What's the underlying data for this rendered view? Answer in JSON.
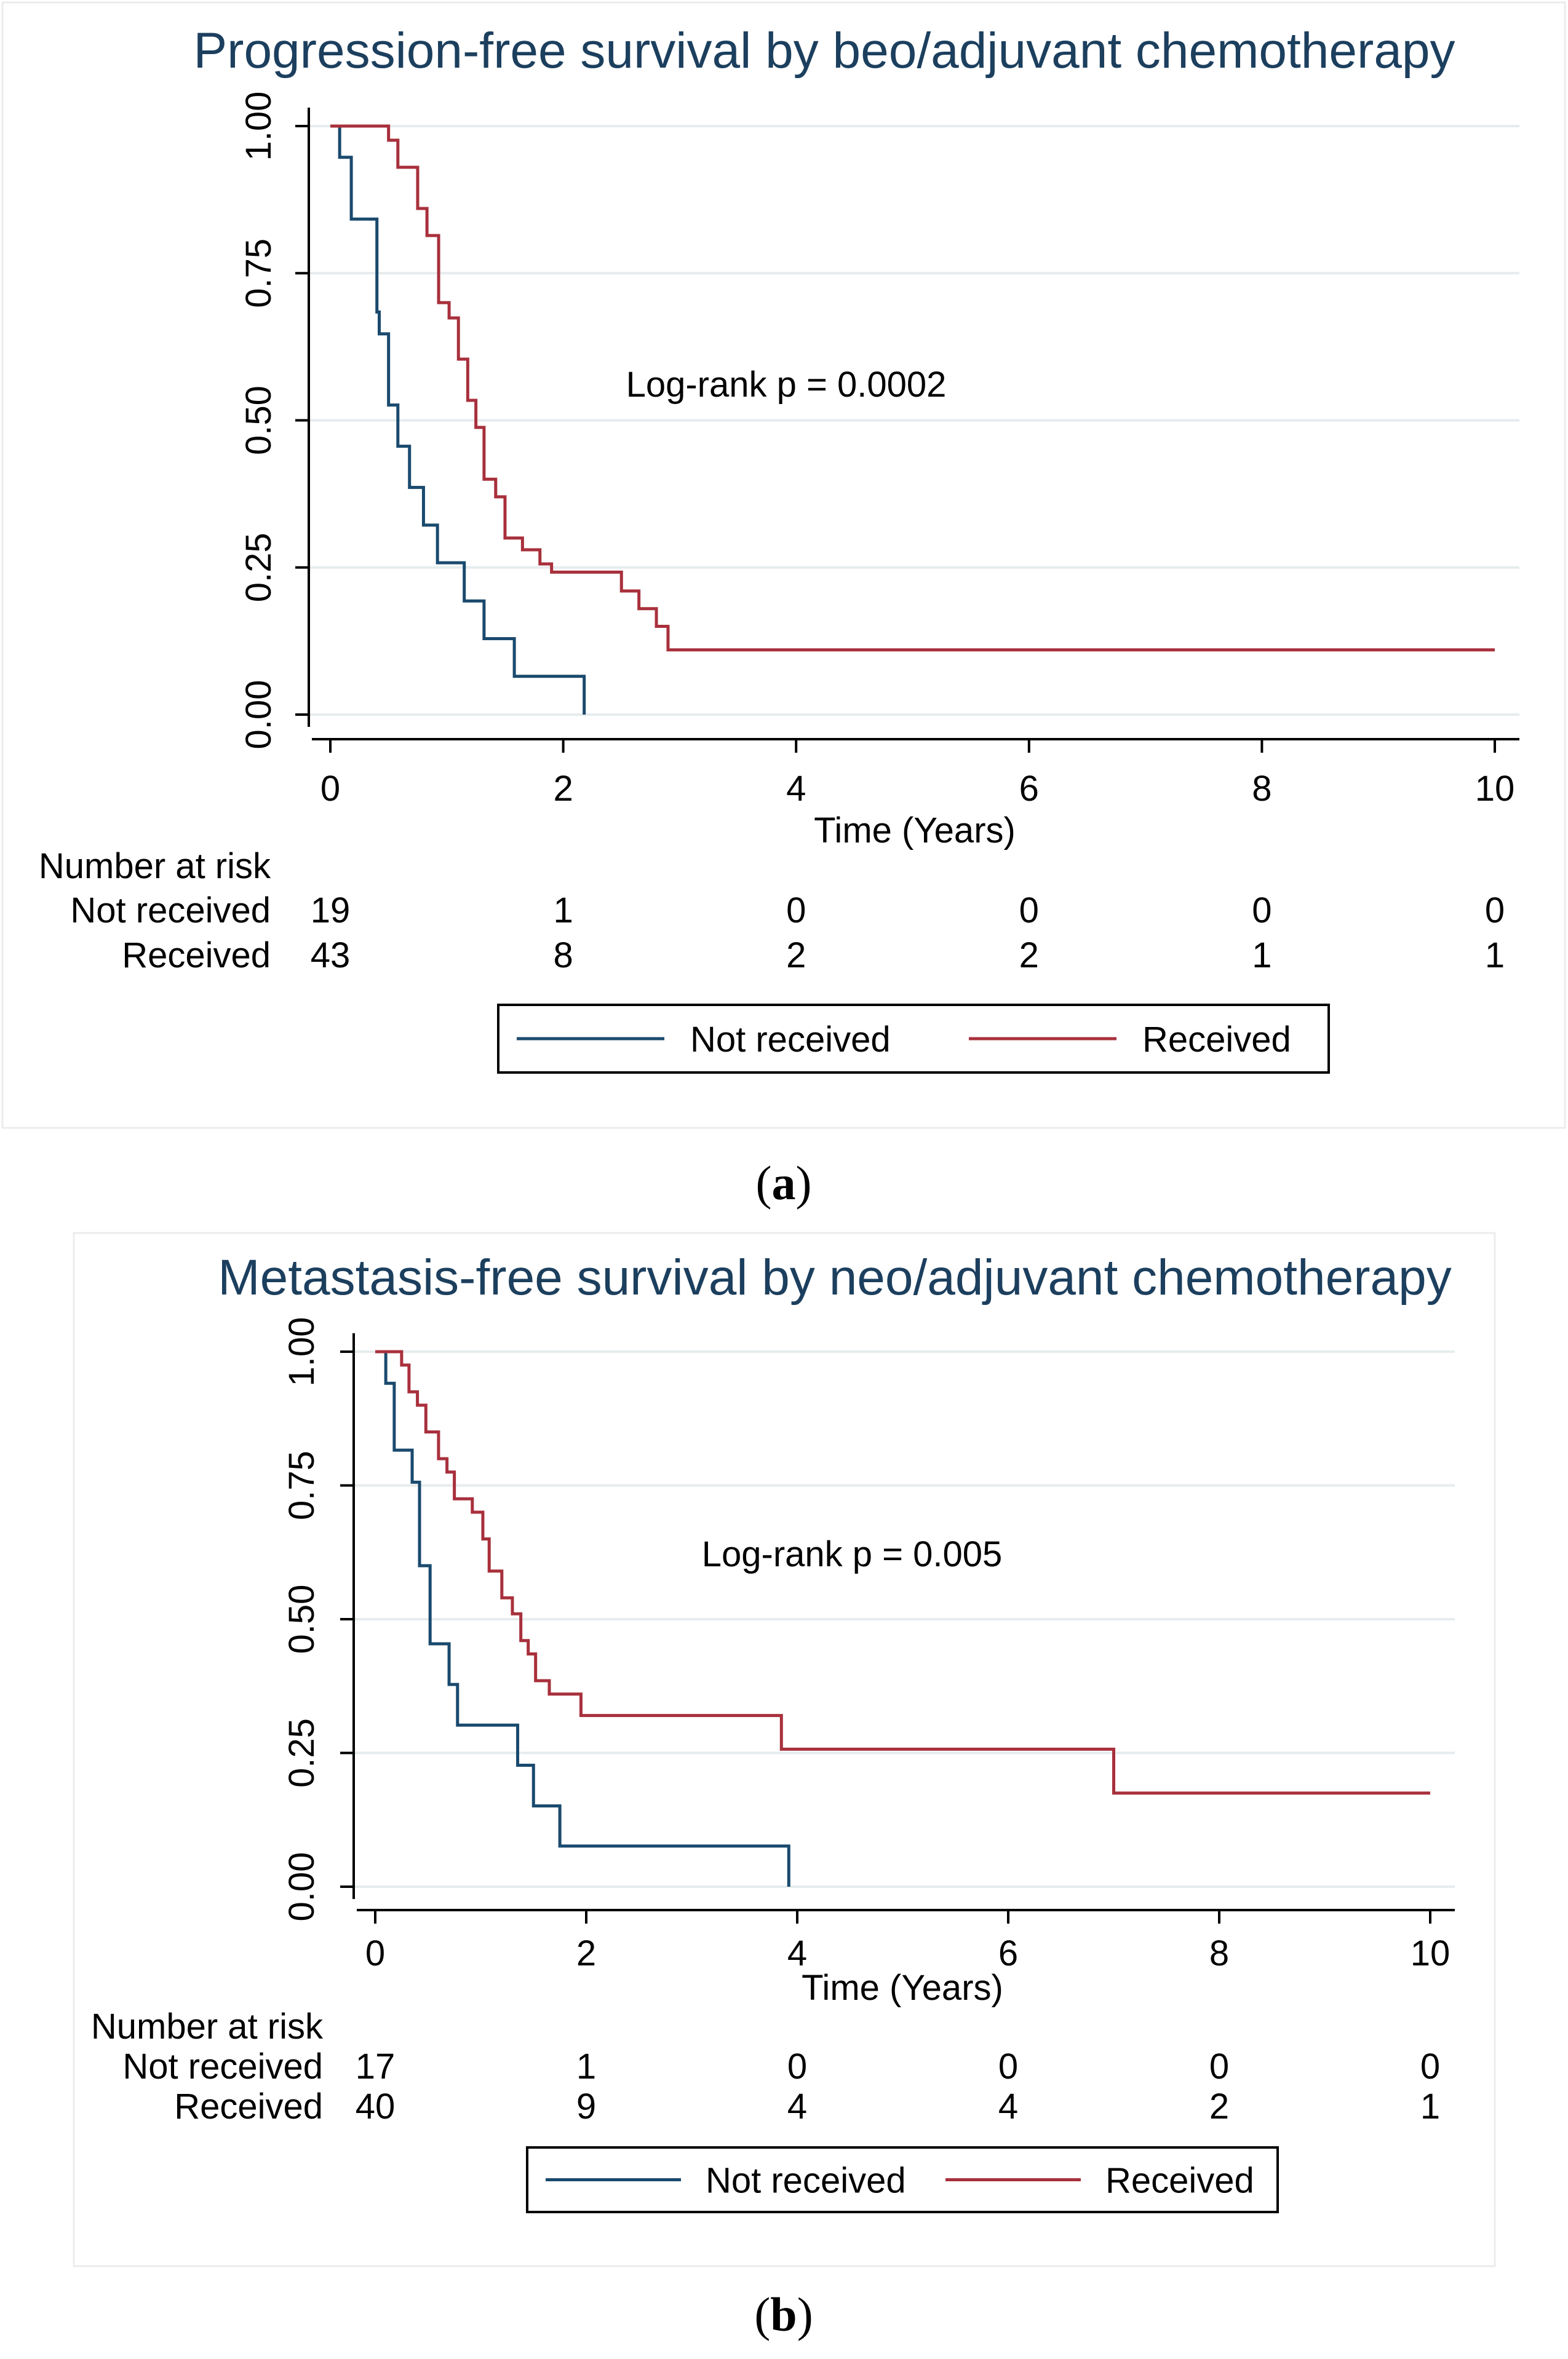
{
  "chart_data": [
    {
      "type": "line",
      "title": "Progression-free survival by beo/adjuvant chemotherapy",
      "xlabel": "Time (Years)",
      "ylabel": "",
      "xlim": [
        0,
        10
      ],
      "ylim": [
        0,
        1
      ],
      "xticks": [
        "0",
        "2",
        "4",
        "6",
        "8",
        "10"
      ],
      "yticks": [
        "0.00",
        "0.25",
        "0.50",
        "0.75",
        "1.00"
      ],
      "annotation": "Log-rank p = 0.0002",
      "caption_letter": "a",
      "series": [
        {
          "name": "Not received",
          "color": "#1a4a6e",
          "steps": [
            [
              0,
              1.0
            ],
            [
              0.08,
              0.947
            ],
            [
              0.18,
              0.842
            ],
            [
              0.4,
              0.684
            ],
            [
              0.42,
              0.647
            ],
            [
              0.5,
              0.526
            ],
            [
              0.58,
              0.456
            ],
            [
              0.68,
              0.386
            ],
            [
              0.8,
              0.322
            ],
            [
              0.92,
              0.258
            ],
            [
              1.15,
              0.193
            ],
            [
              1.32,
              0.129
            ],
            [
              1.58,
              0.065
            ],
            [
              2.18,
              0.0
            ]
          ],
          "end": 2.18
        },
        {
          "name": "Received",
          "color": "#a8303c",
          "steps": [
            [
              0,
              1.0
            ],
            [
              0.5,
              0.976
            ],
            [
              0.58,
              0.93
            ],
            [
              0.75,
              0.86
            ],
            [
              0.83,
              0.814
            ],
            [
              0.93,
              0.7
            ],
            [
              1.02,
              0.674
            ],
            [
              1.1,
              0.604
            ],
            [
              1.18,
              0.534
            ],
            [
              1.25,
              0.488
            ],
            [
              1.32,
              0.4
            ],
            [
              1.42,
              0.37
            ],
            [
              1.5,
              0.3
            ],
            [
              1.65,
              0.28
            ],
            [
              1.8,
              0.256
            ],
            [
              1.9,
              0.242
            ],
            [
              2.5,
              0.21
            ],
            [
              2.65,
              0.18
            ],
            [
              2.8,
              0.15
            ],
            [
              2.9,
              0.11
            ]
          ],
          "end": 10
        }
      ],
      "risk_table": {
        "header": "Number at risk",
        "times": [
          0,
          2,
          4,
          6,
          8,
          10
        ],
        "rows": [
          {
            "label": "Not received",
            "values": [
              "19",
              "1",
              "0",
              "0",
              "0",
              "0"
            ]
          },
          {
            "label": "Received",
            "values": [
              "43",
              "8",
              "2",
              "2",
              "1",
              "1"
            ]
          }
        ]
      },
      "legend": [
        "Not received",
        "Received"
      ]
    },
    {
      "type": "line",
      "title": "Metastasis-free survival by neo/adjuvant chemotherapy",
      "xlabel": "Time (Years)",
      "ylabel": "",
      "xlim": [
        0,
        10
      ],
      "ylim": [
        0,
        1
      ],
      "xticks": [
        "0",
        "2",
        "4",
        "6",
        "8",
        "10"
      ],
      "yticks": [
        "0.00",
        "0.25",
        "0.50",
        "0.75",
        "1.00"
      ],
      "annotation": "Log-rank p = 0.005",
      "caption_letter": "b",
      "series": [
        {
          "name": "Not received",
          "color": "#1a4a6e",
          "steps": [
            [
              0,
              1.0
            ],
            [
              0.1,
              0.941
            ],
            [
              0.18,
              0.816
            ],
            [
              0.35,
              0.756
            ],
            [
              0.42,
              0.6
            ],
            [
              0.52,
              0.454
            ],
            [
              0.7,
              0.378
            ],
            [
              0.78,
              0.302
            ],
            [
              1.35,
              0.227
            ],
            [
              1.5,
              0.151
            ],
            [
              1.75,
              0.076
            ],
            [
              3.92,
              0.0
            ]
          ],
          "end": 3.92
        },
        {
          "name": "Received",
          "color": "#a8303c",
          "steps": [
            [
              0,
              1.0
            ],
            [
              0.25,
              0.975
            ],
            [
              0.32,
              0.925
            ],
            [
              0.4,
              0.9
            ],
            [
              0.48,
              0.85
            ],
            [
              0.6,
              0.8
            ],
            [
              0.68,
              0.775
            ],
            [
              0.75,
              0.725
            ],
            [
              0.92,
              0.7
            ],
            [
              1.02,
              0.65
            ],
            [
              1.08,
              0.59
            ],
            [
              1.2,
              0.54
            ],
            [
              1.3,
              0.51
            ],
            [
              1.38,
              0.46
            ],
            [
              1.45,
              0.435
            ],
            [
              1.52,
              0.385
            ],
            [
              1.65,
              0.36
            ],
            [
              1.95,
              0.32
            ],
            [
              3.85,
              0.257
            ],
            [
              7.0,
              0.175
            ]
          ],
          "end": 10
        }
      ],
      "risk_table": {
        "header": "Number at risk",
        "times": [
          0,
          2,
          4,
          6,
          8,
          10
        ],
        "rows": [
          {
            "label": "Not received",
            "values": [
              "17",
              "1",
              "0",
              "0",
              "0",
              "0"
            ]
          },
          {
            "label": "Received",
            "values": [
              "40",
              "9",
              "4",
              "4",
              "2",
              "1"
            ]
          }
        ]
      },
      "legend": [
        "Not received",
        "Received"
      ]
    }
  ]
}
